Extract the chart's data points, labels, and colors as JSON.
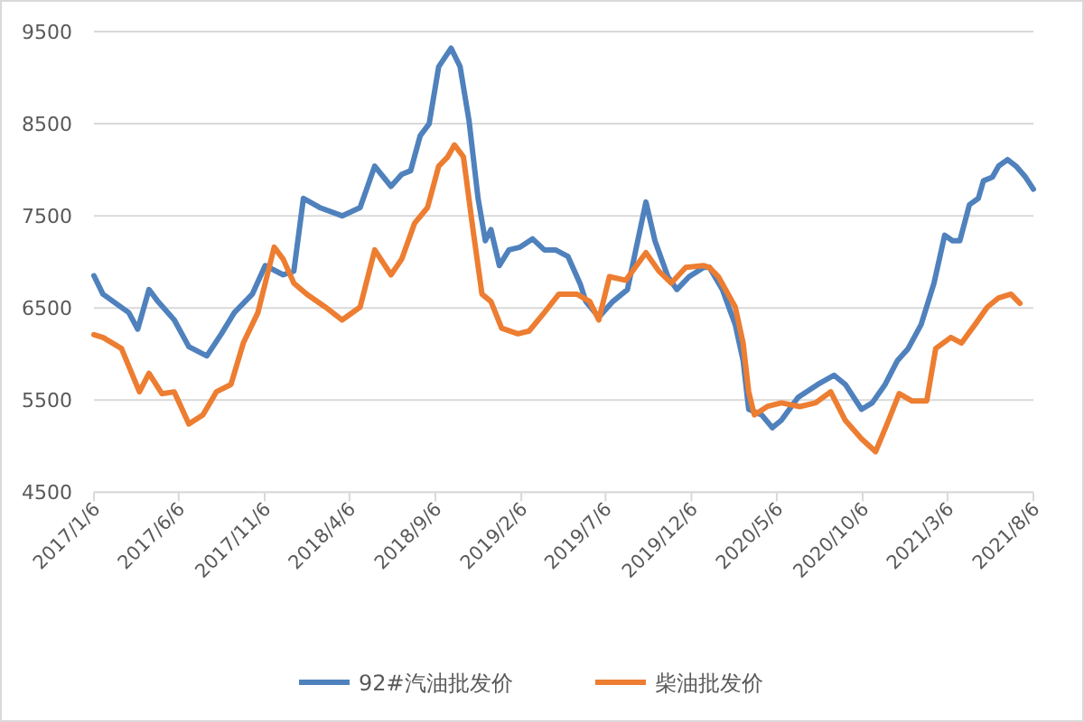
{
  "chart_data": {
    "type": "line",
    "series": [
      {
        "name": "92#汽油批发价",
        "color": "#4f81bd",
        "x": [
          "2017-01-06",
          "2017-01-22",
          "2017-03-09",
          "2017-03-25",
          "2017-04-14",
          "2017-04-30",
          "2017-05-29",
          "2017-06-24",
          "2017-07-26",
          "2017-08-21",
          "2017-09-13",
          "2017-10-15",
          "2017-11-07",
          "2017-12-09",
          "2017-12-28",
          "2018-01-14",
          "2018-02-12",
          "2018-03-24",
          "2018-04-25",
          "2018-05-21",
          "2018-06-19",
          "2018-07-08",
          "2018-07-24",
          "2018-08-10",
          "2018-08-26",
          "2018-09-12",
          "2018-10-04",
          "2018-10-20",
          "2018-11-05",
          "2018-11-21",
          "2018-12-04",
          "2018-12-14",
          "2018-12-29",
          "2019-01-15",
          "2019-02-04",
          "2019-02-26",
          "2019-03-19",
          "2019-04-08",
          "2019-04-30",
          "2019-05-22",
          "2019-06-01",
          "2019-06-24",
          "2019-07-19",
          "2019-08-14",
          "2019-09-16",
          "2019-10-02",
          "2019-10-25",
          "2019-11-10",
          "2019-12-02",
          "2019-12-28",
          "2020-01-07",
          "2020-01-30",
          "2020-02-22",
          "2020-03-07",
          "2020-03-17",
          "2020-04-09",
          "2020-04-28",
          "2020-05-14",
          "2020-06-13",
          "2020-07-18",
          "2020-08-16",
          "2020-09-05",
          "2020-10-04",
          "2020-10-23",
          "2020-11-15",
          "2020-12-07",
          "2020-12-26",
          "2021-01-18",
          "2021-02-10",
          "2021-03-01",
          "2021-03-15",
          "2021-03-28",
          "2021-04-14",
          "2021-04-30",
          "2021-05-09",
          "2021-05-25",
          "2021-06-05",
          "2021-06-21",
          "2021-07-06",
          "2021-07-23",
          "2021-08-06"
        ],
        "values": [
          6850,
          6650,
          6450,
          6270,
          6700,
          6570,
          6370,
          6080,
          5980,
          6220,
          6450,
          6650,
          6960,
          6860,
          6900,
          7690,
          7590,
          7500,
          7590,
          8040,
          7820,
          7950,
          7990,
          8370,
          8500,
          9120,
          9320,
          9120,
          8530,
          7690,
          7230,
          7350,
          6960,
          7130,
          7160,
          7250,
          7130,
          7130,
          7060,
          6760,
          6570,
          6400,
          6570,
          6700,
          7650,
          7230,
          6840,
          6700,
          6840,
          6940,
          6940,
          6700,
          6320,
          5930,
          5400,
          5340,
          5200,
          5280,
          5530,
          5670,
          5770,
          5670,
          5400,
          5470,
          5670,
          5930,
          6060,
          6320,
          6770,
          7290,
          7230,
          7230,
          7620,
          7690,
          7880,
          7920,
          8040,
          8110,
          8040,
          7920,
          7790
        ]
      },
      {
        "name": "柴油批发价",
        "color": "#ed7d31",
        "x": [
          "2017-01-06",
          "2017-01-22",
          "2017-02-24",
          "2017-03-28",
          "2017-04-14",
          "2017-05-07",
          "2017-05-29",
          "2017-06-24",
          "2017-07-19",
          "2017-08-12",
          "2017-09-07",
          "2017-09-29",
          "2017-10-25",
          "2017-11-23",
          "2017-12-09",
          "2017-12-28",
          "2018-01-20",
          "2018-02-22",
          "2018-03-24",
          "2018-04-25",
          "2018-05-21",
          "2018-06-19",
          "2018-07-08",
          "2018-07-31",
          "2018-08-23",
          "2018-09-12",
          "2018-09-28",
          "2018-10-10",
          "2018-10-26",
          "2018-11-12",
          "2018-11-28",
          "2018-12-14",
          "2019-01-02",
          "2019-01-31",
          "2019-02-20",
          "2019-03-19",
          "2019-04-14",
          "2019-05-16",
          "2019-06-08",
          "2019-06-24",
          "2019-07-13",
          "2019-08-11",
          "2019-09-16",
          "2019-10-09",
          "2019-10-31",
          "2019-11-26",
          "2019-12-28",
          "2020-01-07",
          "2020-01-23",
          "2020-02-22",
          "2020-03-07",
          "2020-03-17",
          "2020-03-27",
          "2020-04-19",
          "2020-05-14",
          "2020-06-16",
          "2020-07-14",
          "2020-08-10",
          "2020-09-05",
          "2020-10-04",
          "2020-10-29",
          "2020-11-21",
          "2020-12-10",
          "2021-01-02",
          "2021-01-28",
          "2021-02-13",
          "2021-03-12",
          "2021-03-31",
          "2021-04-24",
          "2021-05-16",
          "2021-06-05",
          "2021-06-27",
          "2021-07-13"
        ],
        "values": [
          6210,
          6180,
          6060,
          5590,
          5790,
          5570,
          5590,
          5240,
          5340,
          5590,
          5670,
          6120,
          6450,
          7160,
          7030,
          6770,
          6650,
          6510,
          6370,
          6510,
          7130,
          6860,
          7030,
          7420,
          7590,
          8040,
          8140,
          8270,
          8140,
          7350,
          6650,
          6570,
          6280,
          6220,
          6250,
          6450,
          6650,
          6650,
          6570,
          6370,
          6840,
          6800,
          7100,
          6900,
          6770,
          6940,
          6960,
          6940,
          6840,
          6510,
          6120,
          5590,
          5340,
          5430,
          5470,
          5430,
          5470,
          5590,
          5280,
          5080,
          4940,
          5280,
          5570,
          5490,
          5490,
          6060,
          6180,
          6120,
          6320,
          6510,
          6610,
          6650,
          6550
        ]
      }
    ],
    "xlim": [
      "2017-01-06",
      "2021-08-06"
    ],
    "xticks": [
      {
        "value": "2017-01-06",
        "label": "2017/1/6"
      },
      {
        "value": "2017-06-06",
        "label": "2017/6/6"
      },
      {
        "value": "2017-11-06",
        "label": "2017/11/6"
      },
      {
        "value": "2018-04-06",
        "label": "2018/4/6"
      },
      {
        "value": "2018-09-06",
        "label": "2018/9/6"
      },
      {
        "value": "2019-02-06",
        "label": "2019/2/6"
      },
      {
        "value": "2019-07-06",
        "label": "2019/7/6"
      },
      {
        "value": "2019-12-06",
        "label": "2019/12/6"
      },
      {
        "value": "2020-05-06",
        "label": "2020/5/6"
      },
      {
        "value": "2020-10-06",
        "label": "2020/10/6"
      },
      {
        "value": "2021-03-06",
        "label": "2021/3/6"
      },
      {
        "value": "2021-08-06",
        "label": "2021/8/6"
      }
    ],
    "ylim": [
      4500,
      9500
    ],
    "yticks": [
      4500,
      5500,
      6500,
      7500,
      8500,
      9500
    ],
    "grid": "y",
    "legend": "bottom",
    "line_style": "solid",
    "marker": "none"
  }
}
